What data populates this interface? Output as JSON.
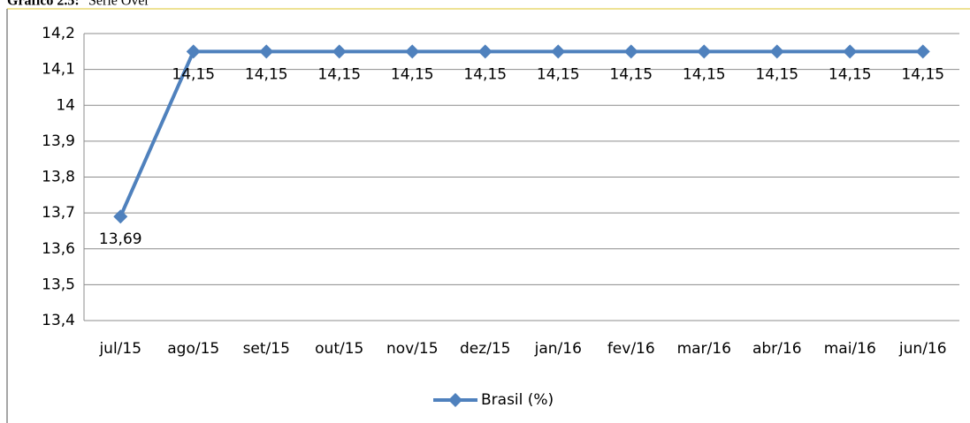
{
  "figure_label": "Gráfico 2.5:",
  "chart_data": {
    "type": "line",
    "title": "Série Over",
    "categories": [
      "jul/15",
      "ago/15",
      "set/15",
      "out/15",
      "nov/15",
      "dez/15",
      "jan/16",
      "fev/16",
      "mar/16",
      "abr/16",
      "mai/16",
      "jun/16"
    ],
    "series": [
      {
        "name": "Brasil (%)",
        "color": "#4f81bd",
        "values": [
          13.69,
          14.15,
          14.15,
          14.15,
          14.15,
          14.15,
          14.15,
          14.15,
          14.15,
          14.15,
          14.15,
          14.15
        ],
        "value_labels": [
          "13,69",
          "14,15",
          "14,15",
          "14,15",
          "14,15",
          "14,15",
          "14,15",
          "14,15",
          "14,15",
          "14,15",
          "14,15",
          "14,15"
        ]
      }
    ],
    "ylim": [
      13.4,
      14.2
    ],
    "yticks": [
      {
        "value": 13.4,
        "label": "13,4"
      },
      {
        "value": 13.5,
        "label": "13,5"
      },
      {
        "value": 13.6,
        "label": "13,6"
      },
      {
        "value": 13.7,
        "label": "13,7"
      },
      {
        "value": 13.8,
        "label": "13,8"
      },
      {
        "value": 13.9,
        "label": "13,9"
      },
      14,
      {
        "value": 14.1,
        "label": "14,1"
      },
      {
        "value": 14.2,
        "label": "14,2"
      }
    ],
    "grid": true,
    "legend": "bottom"
  }
}
